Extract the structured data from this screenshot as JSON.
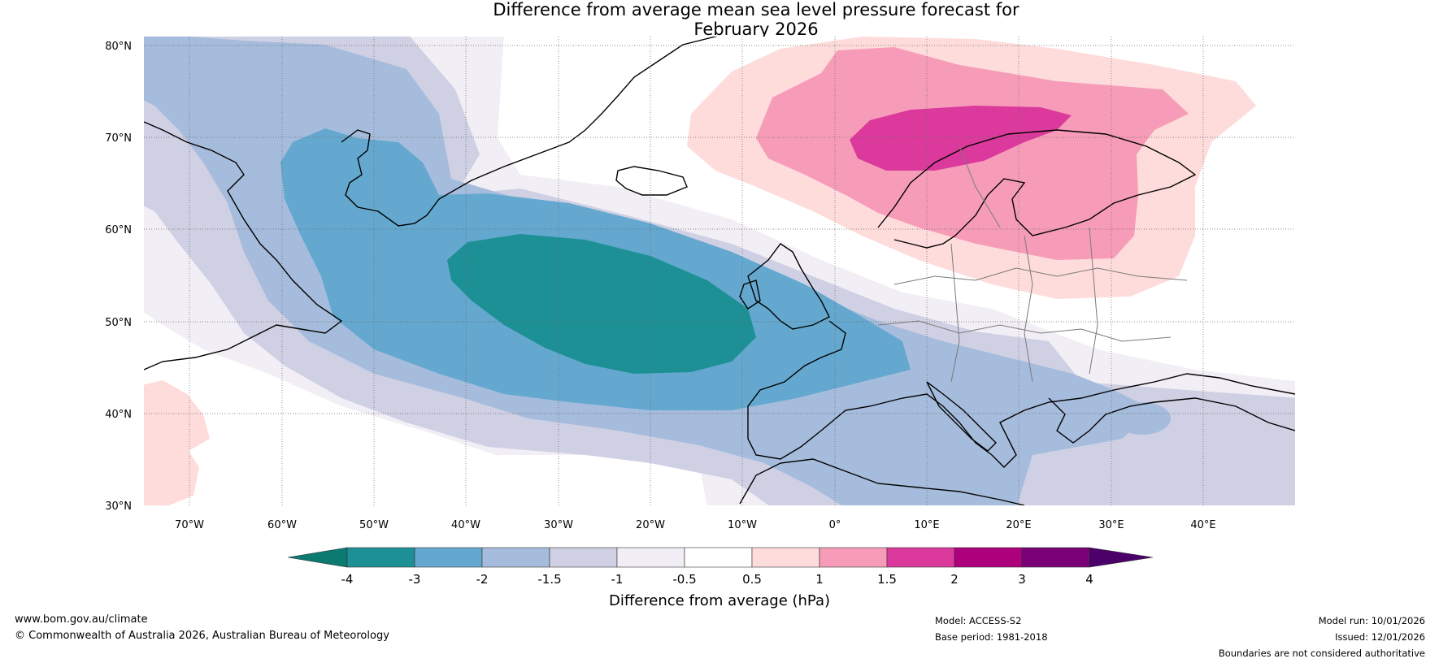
{
  "title": {
    "line1": "Difference from average mean sea level pressure forecast for",
    "line2": "February 2026"
  },
  "map": {
    "lat_labels": [
      "80°N",
      "70°N",
      "60°N",
      "50°N",
      "40°N",
      "30°N"
    ],
    "lon_labels": [
      "70°W",
      "60°W",
      "50°W",
      "40°W",
      "30°W",
      "20°W",
      "10°W",
      "0°",
      "10°E",
      "20°E",
      "30°E",
      "40°E"
    ],
    "extent": {
      "lon_min": -75,
      "lon_max": 50,
      "lat_min": 30,
      "lat_max": 81
    }
  },
  "colorbar": {
    "label": "Difference from average (hPa)",
    "ticks": [
      "-4",
      "-3",
      "-2",
      "-1.5",
      "-1",
      "-0.5",
      "0.5",
      "1",
      "1.5",
      "2",
      "3",
      "4"
    ],
    "colors": {
      "below_min": "#0b7a70",
      "n4_n3": "#1d9096",
      "n3_n2": "#64a8cf",
      "n2_n15": "#a6bcdc",
      "n15_n1": "#cfd0e4",
      "n1_n05": "#f2eef5",
      "neutral": "#ffffff",
      "p05_p1": "#fddcdb",
      "p1_p15": "#f79cb8",
      "p15_p2": "#db3a9c",
      "p2_p3": "#ad007d",
      "p3_p4": "#7a0178",
      "above_max": "#4c006a"
    }
  },
  "footer": {
    "website": "www.bom.gov.au/climate",
    "copyright": "© Commonwealth of Australia 2026, Australian Bureau of Meteorology",
    "model": "Model: ACCESS-S2",
    "base_period": "Base period: 1981-2018",
    "model_run": "Model run: 10/01/2026",
    "issued": "Issued: 12/01/2026",
    "disclaimer": "Boundaries are not considered authoritative"
  }
}
